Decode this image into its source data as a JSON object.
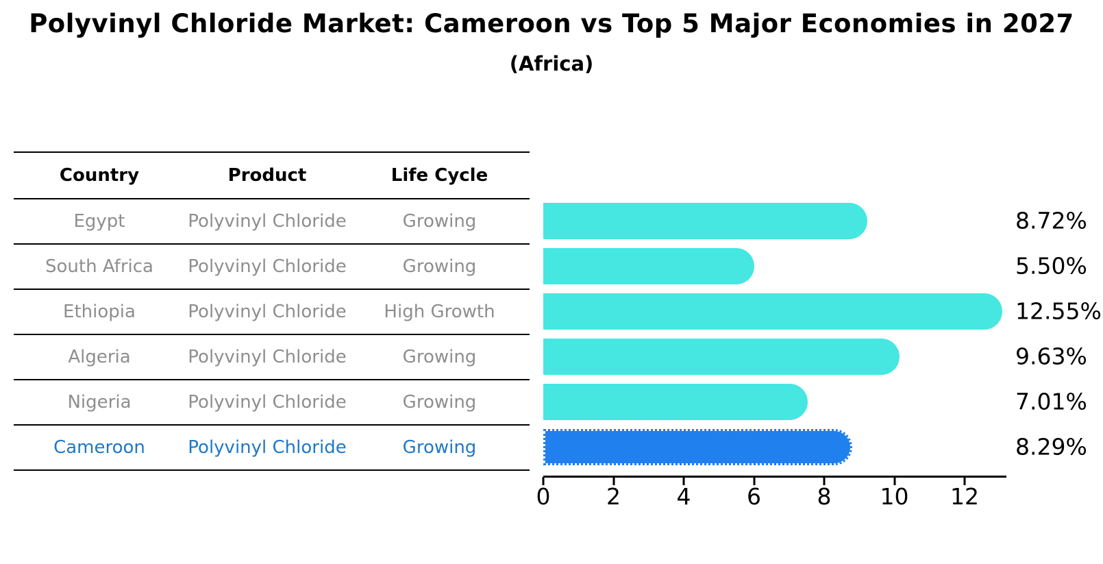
{
  "title": "Polyvinyl Chloride Market: Cameroon vs Top 5 Major Economies in 2027",
  "subtitle": "(Africa)",
  "table": {
    "headers": [
      "Country",
      "Product",
      "Life Cycle"
    ],
    "rows": [
      {
        "country": "Egypt",
        "product": "Polyvinyl Chloride",
        "life_cycle": "Growing",
        "highlighted": false
      },
      {
        "country": "South Africa",
        "product": "Polyvinyl Chloride",
        "life_cycle": "Growing",
        "highlighted": false
      },
      {
        "country": "Ethiopia",
        "product": "Polyvinyl Chloride",
        "life_cycle": "High Growth",
        "highlighted": false
      },
      {
        "country": "Algeria",
        "product": "Polyvinyl Chloride",
        "life_cycle": "Growing",
        "highlighted": false
      },
      {
        "country": "Nigeria",
        "product": "Polyvinyl Chloride",
        "life_cycle": "Growing",
        "highlighted": false
      },
      {
        "country": "Cameroon",
        "product": "Polyvinyl Chloride",
        "life_cycle": "Growing",
        "highlighted": true
      }
    ]
  },
  "chart_data": {
    "type": "bar",
    "orientation": "horizontal",
    "categories": [
      "Egypt",
      "South Africa",
      "Ethiopia",
      "Algeria",
      "Nigeria",
      "Cameroon"
    ],
    "values": [
      8.72,
      5.5,
      12.55,
      9.63,
      7.01,
      8.29
    ],
    "value_labels": [
      "8.72%",
      "5.50%",
      "12.55%",
      "9.63%",
      "7.01%",
      "8.29%"
    ],
    "xticks": [
      0,
      2,
      4,
      6,
      8,
      10,
      12
    ],
    "xtick_labels": [
      "0",
      "2",
      "4",
      "6",
      "8",
      "10",
      "12"
    ],
    "xlim": [
      0,
      13.17
    ],
    "grid": false,
    "highlight_index": 5
  },
  "colors": {
    "bar": "#46E7E1",
    "highlight_bar": "#1F80EE",
    "highlight_text": "#1F78C8",
    "row_text": "#8E8E8E",
    "axis": "#000000"
  }
}
